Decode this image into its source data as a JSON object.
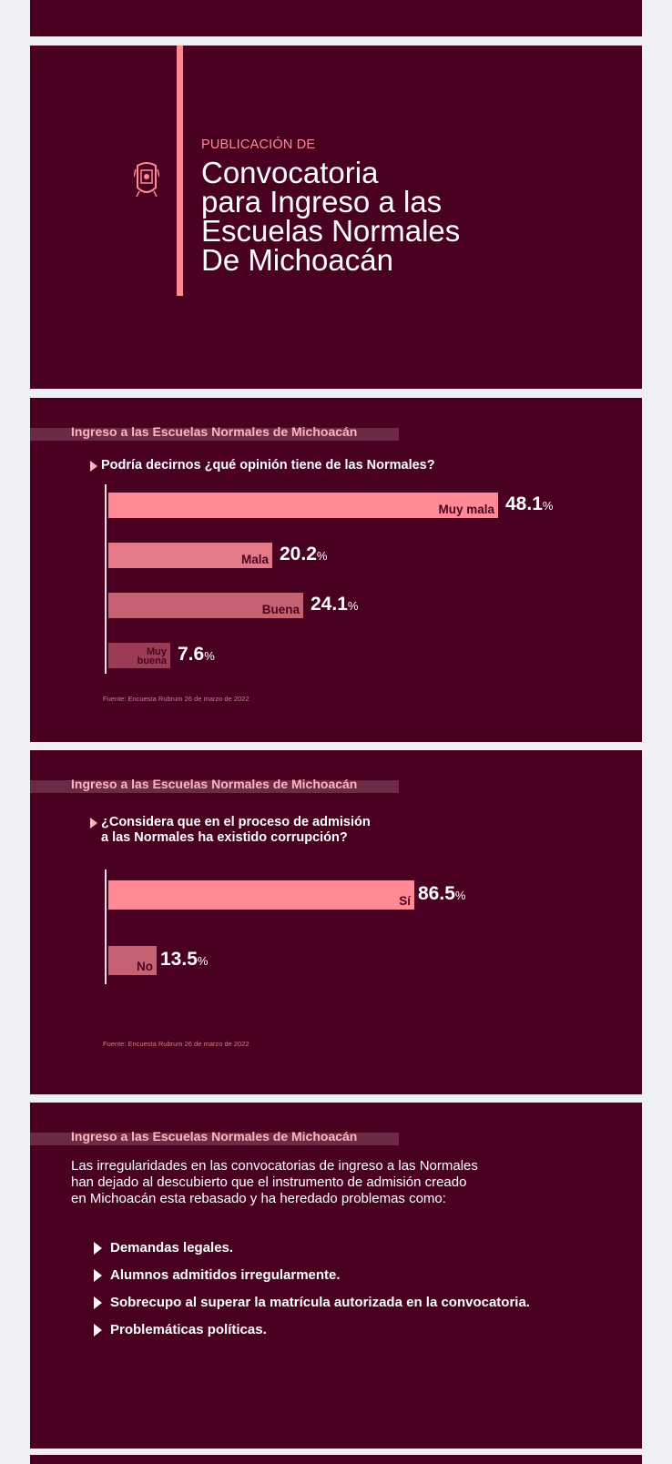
{
  "cover": {
    "kicker": "PUBLICACIÓN DE",
    "title_lines": [
      "Convocatoria",
      "para Ingreso a las",
      "Escuelas Normales",
      "De Michoacán"
    ],
    "seal_icon": "michoacan-coat-of-arms-icon"
  },
  "colors": {
    "background": "#4a0020",
    "accent": "#ff8a95",
    "bar_dark": "#c56272",
    "bar_darkest": "#9b3c55"
  },
  "chart_data": [
    {
      "type": "bar",
      "orientation": "horizontal",
      "section_title": "Ingreso a las Escuelas Normales de Michoacán",
      "title": "Podría decirnos ¿qué opinión tiene de las Normales?",
      "categories": [
        "Muy mala",
        "Mala",
        "Buena",
        "Muy buena"
      ],
      "values": [
        48.1,
        20.2,
        24.1,
        7.6
      ],
      "value_labels": [
        "48.1",
        "20.2",
        "24.1",
        "7.6"
      ],
      "unit": "%",
      "colors": [
        "#ff8a95",
        "#e47a88",
        "#c56272",
        "#9b3c55"
      ],
      "source": "Fuente: Encuesta Rubrum 26 de marzo de 2022"
    },
    {
      "type": "bar",
      "orientation": "horizontal",
      "section_title": "Ingreso a las Escuelas Normales de Michoacán",
      "title_lines": [
        "¿Considera que en el proceso de admisión",
        "a las Normales ha existido corrupción?"
      ],
      "categories": [
        "Sí",
        "No"
      ],
      "values": [
        86.5,
        13.5
      ],
      "value_labels": [
        "86.5",
        "13.5"
      ],
      "unit": "%",
      "colors": [
        "#ff8a95",
        "#c56272"
      ],
      "source": "Fuente: Encuesta Rubrum 26 de marzo de 2022"
    }
  ],
  "info": {
    "section_title": "Ingreso a las Escuelas Normales de Michoacán",
    "paragraph_lines": [
      "Las irregularidades en las convocatorias de ingreso a las Normales",
      "han dejado al descubierto que el instrumento de admisión creado",
      "en Michoacán esta rebasado y ha heredado problemas como:"
    ],
    "bullets": [
      "Demandas legales.",
      "Alumnos admitidos irregularmente.",
      "Sobrecupo al superar la matrícula autorizada en la convocatoria.",
      "Problemáticas políticas."
    ]
  }
}
